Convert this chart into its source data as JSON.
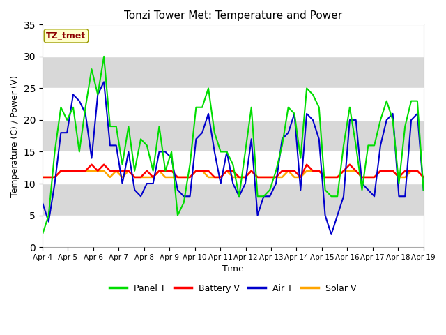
{
  "title": "Tonzi Tower Met: Temperature and Power",
  "xlabel": "Time",
  "ylabel": "Temperature (C) / Power (V)",
  "ylim": [
    0,
    35
  ],
  "yticks": [
    0,
    5,
    10,
    15,
    20,
    25,
    30,
    35
  ],
  "fig_bg": "#ffffff",
  "plot_bg": "#ffffff",
  "annotation_text": "TZ_tmet",
  "annotation_color": "#8B0000",
  "annotation_bg": "#FFFFCC",
  "annotation_edge": "#999900",
  "legend_entries": [
    "Panel T",
    "Battery V",
    "Air T",
    "Solar V"
  ],
  "legend_colors": [
    "#00DD00",
    "#FF0000",
    "#0000CC",
    "#FFA500"
  ],
  "xtick_labels": [
    "Apr 4",
    "Apr 5",
    "Apr 6",
    "Apr 7",
    "Apr 8",
    "Apr 9",
    "Apr 10",
    "Apr 11",
    "Apr 12",
    "Apr 13",
    "Apr 14",
    "Apr 15",
    "Apr 16",
    "Apr 17",
    "Apr 18",
    "Apr 19"
  ],
  "panel_t": [
    2,
    5,
    15,
    22,
    20,
    22,
    15,
    22,
    28,
    24,
    30,
    19,
    19,
    13,
    19,
    12,
    17,
    16,
    12,
    19,
    12,
    15,
    5,
    7,
    13,
    22,
    22,
    25,
    18,
    15,
    15,
    13,
    8,
    15,
    22,
    8,
    8,
    9,
    12,
    16,
    22,
    21,
    14,
    25,
    24,
    22,
    9,
    8,
    8,
    16,
    22,
    16,
    9,
    16,
    16,
    20,
    23,
    20,
    10,
    19,
    23,
    23,
    9
  ],
  "battery_v": [
    11,
    11,
    11,
    12,
    12,
    12,
    12,
    12,
    13,
    12,
    13,
    12,
    12,
    12,
    12,
    11,
    11,
    12,
    11,
    12,
    12,
    12,
    11,
    11,
    11,
    12,
    12,
    12,
    11,
    11,
    12,
    12,
    11,
    11,
    12,
    11,
    11,
    11,
    11,
    12,
    12,
    12,
    11,
    13,
    12,
    12,
    11,
    11,
    11,
    12,
    13,
    12,
    11,
    11,
    11,
    12,
    12,
    12,
    11,
    12,
    12,
    12,
    11
  ],
  "air_t": [
    7,
    4,
    10,
    18,
    18,
    24,
    23,
    21,
    14,
    24,
    26,
    16,
    16,
    10,
    15,
    9,
    8,
    10,
    10,
    15,
    15,
    14,
    9,
    8,
    8,
    17,
    18,
    21,
    15,
    10,
    15,
    10,
    8,
    10,
    17,
    5,
    8,
    8,
    10,
    17,
    18,
    21,
    9,
    21,
    20,
    17,
    5,
    2,
    5,
    8,
    20,
    20,
    10,
    9,
    8,
    16,
    20,
    21,
    8,
    8,
    20,
    21,
    9
  ],
  "solar_v": [
    11,
    11,
    11,
    12,
    12,
    12,
    12,
    12,
    12,
    12,
    12,
    11,
    12,
    11,
    12,
    11,
    11,
    11,
    11,
    12,
    11,
    11,
    11,
    11,
    11,
    12,
    12,
    11,
    11,
    11,
    12,
    11,
    11,
    11,
    12,
    11,
    11,
    11,
    11,
    11,
    12,
    11,
    11,
    12,
    12,
    12,
    11,
    11,
    11,
    12,
    12,
    12,
    11,
    11,
    11,
    12,
    12,
    12,
    11,
    11,
    12,
    12,
    11
  ],
  "hband_ranges": [
    [
      25,
      30
    ],
    [
      15,
      20
    ],
    [
      5,
      10
    ]
  ],
  "hband_color": "#d8d8d8"
}
